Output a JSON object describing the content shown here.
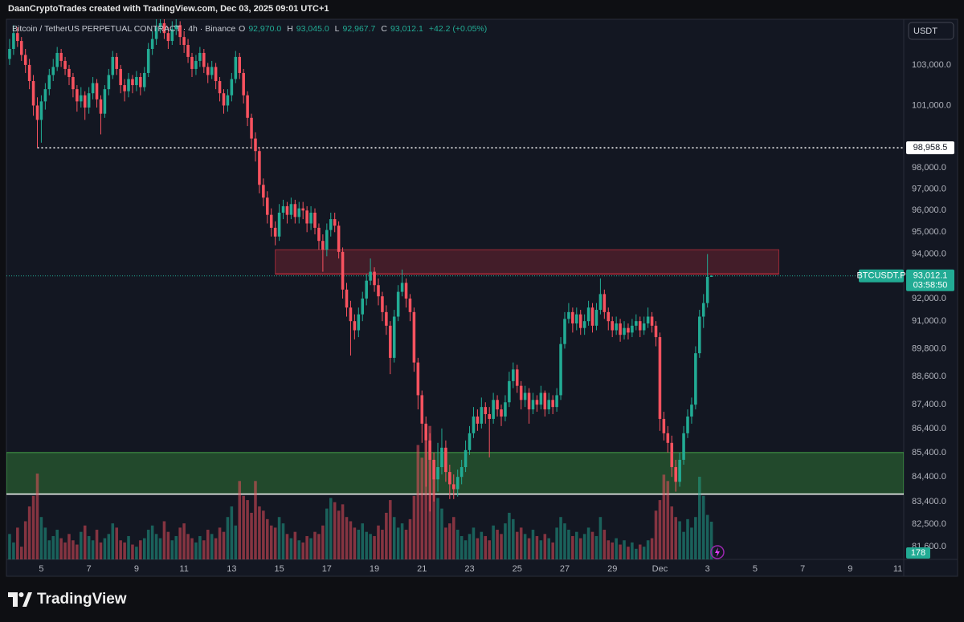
{
  "header": {
    "attribution": "DaanCryptoTrades created with TradingView.com, Dec 03, 2025 09:01 UTC+1"
  },
  "footer": {
    "brand": "TradingView"
  },
  "chart_data": {
    "type": "candlestick",
    "title": "Bitcoin / TetherUS PERPETUAL CONTRACT · 4h · Binance",
    "legend_keys": [
      "O",
      "H",
      "L",
      "C"
    ],
    "legend_values": [
      "92,970.0",
      "93,045.0",
      "92,967.7",
      "93,012.1"
    ],
    "change": "+42.2 (+0.05%)",
    "currency": "USDT",
    "symbol": "BTCUSDT.P",
    "last_price_label": "93,012.1",
    "countdown": "03:58:50",
    "up_color": "#22ab94",
    "down_color": "#f7525f",
    "log_scale": true,
    "grid": false,
    "xlim": [
      -0.8,
      225.5
    ],
    "ylim": [
      81100,
      105300
    ],
    "xticks": [
      {
        "value": 8,
        "label": "5"
      },
      {
        "value": 20,
        "label": "7"
      },
      {
        "value": 32,
        "label": "9"
      },
      {
        "value": 44,
        "label": "11"
      },
      {
        "value": 56,
        "label": "13"
      },
      {
        "value": 68,
        "label": "15"
      },
      {
        "value": 80,
        "label": "17"
      },
      {
        "value": 92,
        "label": "19"
      },
      {
        "value": 104,
        "label": "21"
      },
      {
        "value": 116,
        "label": "23"
      },
      {
        "value": 128,
        "label": "25"
      },
      {
        "value": 140,
        "label": "27"
      },
      {
        "value": 152,
        "label": "29"
      },
      {
        "value": 164,
        "label": "Dec"
      },
      {
        "value": 176,
        "label": "3"
      },
      {
        "value": 188,
        "label": "5"
      },
      {
        "value": 200,
        "label": "7"
      },
      {
        "value": 212,
        "label": "9"
      },
      {
        "value": 224,
        "label": "11"
      }
    ],
    "yticks": [
      {
        "value": 103000,
        "label": "103,000.0"
      },
      {
        "value": 101000,
        "label": "101,000.0"
      },
      {
        "value": 98000,
        "label": "98,000.0"
      },
      {
        "value": 97000,
        "label": "97,000.0"
      },
      {
        "value": 96000,
        "label": "96,000.0"
      },
      {
        "value": 95000,
        "label": "95,000.0"
      },
      {
        "value": 94000,
        "label": "94,000.0"
      },
      {
        "value": 92000,
        "label": "92,000.0"
      },
      {
        "value": 91000,
        "label": "91,000.0"
      },
      {
        "value": 89800,
        "label": "89,800.0"
      },
      {
        "value": 88600,
        "label": "88,600.0"
      },
      {
        "value": 87400,
        "label": "87,400.0"
      },
      {
        "value": 86400,
        "label": "86,400.0"
      },
      {
        "value": 85400,
        "label": "85,400.0"
      },
      {
        "value": 84400,
        "label": "84,400.0"
      },
      {
        "value": 83400,
        "label": "83,400.0"
      },
      {
        "value": 82500,
        "label": "82,500.0"
      },
      {
        "value": 81600,
        "label": "81,600.0"
      }
    ],
    "hline": {
      "value": 98958.5,
      "label": "98,958.5",
      "start": 7,
      "color": "#ffffff"
    },
    "zones": [
      {
        "start": 67,
        "end": 194,
        "top": 94200,
        "bottom": 93100,
        "fill": "rgba(242,54,69,0.22)",
        "stroke": "rgba(242,54,69,0.55)",
        "bottom_line": "rgba(242,54,69,0.55)"
      },
      {
        "start": -0.8,
        "end": 225.5,
        "top": 85400,
        "bottom": 83700,
        "fill": "rgba(56,142,60,0.42)",
        "stroke": "#43a047",
        "bottom_line": "#ffffff"
      }
    ],
    "ohlc": [
      [
        103300,
        104300,
        103000,
        103800
      ],
      [
        103800,
        105000,
        103500,
        104600
      ],
      [
        104600,
        104900,
        103900,
        104200
      ],
      [
        104200,
        104400,
        103200,
        103500
      ],
      [
        103500,
        103800,
        102600,
        103000
      ],
      [
        103000,
        103300,
        101800,
        102200
      ],
      [
        102200,
        102500,
        100500,
        101000
      ],
      [
        101000,
        101400,
        98958.5,
        100300
      ],
      [
        100300,
        101500,
        99200,
        101200
      ],
      [
        101200,
        102100,
        100800,
        101800
      ],
      [
        101800,
        102800,
        101500,
        102500
      ],
      [
        102500,
        103300,
        102200,
        102900
      ],
      [
        102900,
        103900,
        102700,
        103600
      ],
      [
        103600,
        103800,
        102900,
        103200
      ],
      [
        103200,
        103400,
        102500,
        102800
      ],
      [
        102800,
        103000,
        102000,
        102400
      ],
      [
        102400,
        102600,
        101400,
        101800
      ],
      [
        101800,
        102000,
        100700,
        101200
      ],
      [
        101200,
        101900,
        100900,
        101500
      ],
      [
        101500,
        101700,
        100300,
        100900
      ],
      [
        100900,
        101900,
        100600,
        101600
      ],
      [
        101600,
        102400,
        101300,
        102100
      ],
      [
        102100,
        102300,
        100900,
        101300
      ],
      [
        101300,
        101500,
        99600,
        100600
      ],
      [
        100600,
        102000,
        100400,
        101800
      ],
      [
        101800,
        102800,
        101500,
        102500
      ],
      [
        102500,
        103700,
        102300,
        103400
      ],
      [
        103400,
        103600,
        102500,
        102800
      ],
      [
        102800,
        103000,
        101600,
        102000
      ],
      [
        102000,
        102300,
        101200,
        101700
      ],
      [
        101700,
        102600,
        101400,
        102300
      ],
      [
        102300,
        102500,
        101600,
        102000
      ],
      [
        102000,
        102700,
        101700,
        102400
      ],
      [
        102400,
        102600,
        101500,
        101900
      ],
      [
        101900,
        102900,
        101700,
        102600
      ],
      [
        102600,
        104100,
        102400,
        103800
      ],
      [
        103800,
        104700,
        103500,
        104300
      ],
      [
        104300,
        105300,
        104000,
        104900
      ],
      [
        104900,
        105300,
        104600,
        105100
      ],
      [
        105100,
        105300,
        104300,
        104600
      ],
      [
        104600,
        104900,
        103800,
        104200
      ],
      [
        104200,
        105200,
        104000,
        104800
      ],
      [
        104800,
        105300,
        104500,
        105000
      ],
      [
        105000,
        105200,
        104000,
        104400
      ],
      [
        104400,
        104700,
        103600,
        104000
      ],
      [
        104000,
        104300,
        103100,
        103400
      ],
      [
        103400,
        103600,
        102400,
        102800
      ],
      [
        102800,
        103500,
        102500,
        103200
      ],
      [
        103200,
        103900,
        102900,
        103600
      ],
      [
        103600,
        103800,
        102600,
        102900
      ],
      [
        102900,
        103100,
        102100,
        102500
      ],
      [
        102500,
        103200,
        102300,
        102900
      ],
      [
        102900,
        103100,
        101800,
        102200
      ],
      [
        102200,
        102400,
        101200,
        101600
      ],
      [
        101600,
        101800,
        100600,
        101000
      ],
      [
        101000,
        101800,
        100700,
        101500
      ],
      [
        101500,
        102600,
        101200,
        102300
      ],
      [
        102300,
        103700,
        102100,
        103400
      ],
      [
        103400,
        103600,
        102300,
        102600
      ],
      [
        102600,
        102800,
        101100,
        101500
      ],
      [
        101500,
        101700,
        100000,
        100400
      ],
      [
        100400,
        100600,
        98900,
        99400
      ],
      [
        99400,
        99700,
        98300,
        98800
      ],
      [
        98800,
        99000,
        96800,
        97200
      ],
      [
        97200,
        97500,
        96200,
        96600
      ],
      [
        96600,
        96900,
        95400,
        95800
      ],
      [
        95800,
        96100,
        94800,
        95200
      ],
      [
        95200,
        95500,
        94400,
        94800
      ],
      [
        94800,
        96300,
        94600,
        95900
      ],
      [
        95900,
        96500,
        95600,
        96200
      ],
      [
        96200,
        96400,
        95400,
        95800
      ],
      [
        95800,
        96600,
        95600,
        96300
      ],
      [
        96300,
        96500,
        95400,
        95700
      ],
      [
        95700,
        96400,
        95400,
        96100
      ],
      [
        96100,
        96400,
        95600,
        96000
      ],
      [
        96000,
        96200,
        95000,
        95400
      ],
      [
        95400,
        96200,
        95100,
        95900
      ],
      [
        95900,
        96100,
        94900,
        95200
      ],
      [
        95200,
        95400,
        94200,
        94600
      ],
      [
        94600,
        94900,
        93200,
        94200
      ],
      [
        94200,
        95400,
        93900,
        95100
      ],
      [
        95100,
        95900,
        94800,
        95600
      ],
      [
        95600,
        95900,
        95000,
        95300
      ],
      [
        95300,
        95500,
        93800,
        94100
      ],
      [
        94100,
        94300,
        92000,
        92400
      ],
      [
        92400,
        92700,
        91200,
        91600
      ],
      [
        91600,
        91900,
        89500,
        91000
      ],
      [
        91000,
        91300,
        90200,
        90600
      ],
      [
        90600,
        91600,
        90300,
        91300
      ],
      [
        91300,
        92300,
        91000,
        92000
      ],
      [
        92000,
        93100,
        91700,
        92800
      ],
      [
        92800,
        93800,
        92600,
        93200
      ],
      [
        93200,
        93400,
        92300,
        92600
      ],
      [
        92600,
        92900,
        91700,
        92100
      ],
      [
        92100,
        92300,
        91000,
        91400
      ],
      [
        91400,
        91700,
        90400,
        90800
      ],
      [
        90800,
        91000,
        88700,
        89400
      ],
      [
        89400,
        91500,
        89200,
        91200
      ],
      [
        91200,
        92600,
        91000,
        92300
      ],
      [
        92300,
        93300,
        92100,
        92700
      ],
      [
        92700,
        92900,
        91600,
        92000
      ],
      [
        92000,
        92200,
        91000,
        91400
      ],
      [
        91400,
        91600,
        88800,
        89200
      ],
      [
        89200,
        89400,
        87200,
        87800
      ],
      [
        87800,
        88000,
        85800,
        86600
      ],
      [
        86600,
        86900,
        84000,
        85900
      ],
      [
        85900,
        86200,
        83000,
        85100
      ],
      [
        85100,
        85400,
        83400,
        84300
      ],
      [
        84300,
        85800,
        83800,
        84800
      ],
      [
        84800,
        86400,
        84500,
        85600
      ],
      [
        85600,
        85900,
        84200,
        84600
      ],
      [
        84600,
        84900,
        83500,
        84100
      ],
      [
        84100,
        84500,
        83500,
        83900
      ],
      [
        83900,
        84700,
        83600,
        84400
      ],
      [
        84400,
        85100,
        84100,
        84800
      ],
      [
        84800,
        85900,
        84600,
        85500
      ],
      [
        85500,
        86500,
        85300,
        86200
      ],
      [
        86200,
        87300,
        86000,
        86900
      ],
      [
        86900,
        87200,
        86300,
        86600
      ],
      [
        86600,
        87700,
        86400,
        87300
      ],
      [
        87300,
        87500,
        86600,
        87000
      ],
      [
        87000,
        87300,
        85200,
        86800
      ],
      [
        86800,
        87900,
        86600,
        87600
      ],
      [
        87600,
        87800,
        86900,
        87200
      ],
      [
        87200,
        87400,
        86500,
        86900
      ],
      [
        86900,
        87800,
        86700,
        87500
      ],
      [
        87500,
        88800,
        87300,
        88400
      ],
      [
        88400,
        89200,
        88100,
        88900
      ],
      [
        88900,
        89100,
        87900,
        88200
      ],
      [
        88200,
        88400,
        87200,
        87600
      ],
      [
        87600,
        88200,
        87300,
        87900
      ],
      [
        87900,
        88100,
        86600,
        87200
      ],
      [
        87200,
        87900,
        87000,
        87600
      ],
      [
        87600,
        87800,
        87100,
        87400
      ],
      [
        87400,
        88200,
        87200,
        87900
      ],
      [
        87900,
        88000,
        86900,
        87200
      ],
      [
        87200,
        87900,
        87000,
        87600
      ],
      [
        87600,
        87800,
        87000,
        87300
      ],
      [
        87300,
        88100,
        87100,
        87800
      ],
      [
        87800,
        90300,
        87600,
        90000
      ],
      [
        90000,
        91400,
        89800,
        91100
      ],
      [
        91100,
        91800,
        90900,
        91400
      ],
      [
        91400,
        91600,
        90500,
        90900
      ],
      [
        90900,
        91600,
        90600,
        91300
      ],
      [
        91300,
        91500,
        90400,
        90700
      ],
      [
        90700,
        91300,
        90400,
        91000
      ],
      [
        91000,
        91900,
        90800,
        91600
      ],
      [
        91600,
        91800,
        90500,
        90800
      ],
      [
        90800,
        91800,
        90600,
        91500
      ],
      [
        91500,
        92900,
        91300,
        92200
      ],
      [
        92200,
        92400,
        91100,
        91400
      ],
      [
        91400,
        91600,
        90600,
        91000
      ],
      [
        91000,
        91200,
        90300,
        90600
      ],
      [
        90600,
        91200,
        90400,
        90900
      ],
      [
        90900,
        91100,
        90100,
        90400
      ],
      [
        90400,
        91000,
        90200,
        90700
      ],
      [
        90700,
        90900,
        90200,
        90500
      ],
      [
        90500,
        91100,
        90300,
        90800
      ],
      [
        90800,
        91300,
        90600,
        91000
      ],
      [
        91000,
        91200,
        90300,
        90600
      ],
      [
        90600,
        91200,
        90400,
        90900
      ],
      [
        90900,
        91600,
        90700,
        91200
      ],
      [
        91200,
        91400,
        90500,
        90800
      ],
      [
        90800,
        91000,
        89900,
        90300
      ],
      [
        90300,
        90500,
        86300,
        86800
      ],
      [
        86800,
        87100,
        85900,
        86200
      ],
      [
        86200,
        86500,
        85400,
        85800
      ],
      [
        85800,
        86100,
        84400,
        84800
      ],
      [
        84800,
        85100,
        83800,
        84200
      ],
      [
        84200,
        85400,
        84000,
        85100
      ],
      [
        85100,
        86500,
        84900,
        86200
      ],
      [
        86200,
        87200,
        86000,
        86900
      ],
      [
        86900,
        87700,
        86600,
        87400
      ],
      [
        87400,
        89900,
        87200,
        89600
      ],
      [
        89600,
        91500,
        89400,
        91200
      ],
      [
        91200,
        92200,
        90700,
        91800
      ],
      [
        91800,
        94000,
        91600,
        92970
      ],
      [
        92970,
        93045,
        92967.7,
        93012.1
      ]
    ],
    "volume": [
      120,
      80,
      150,
      60,
      180,
      250,
      300,
      405,
      200,
      150,
      90,
      110,
      140,
      100,
      80,
      120,
      90,
      70,
      130,
      160,
      110,
      90,
      140,
      80,
      100,
      120,
      170,
      150,
      90,
      80,
      110,
      70,
      60,
      90,
      100,
      140,
      160,
      120,
      100,
      180,
      130,
      90,
      110,
      150,
      170,
      120,
      100,
      80,
      110,
      90,
      140,
      120,
      100,
      150,
      130,
      200,
      250,
      160,
      370,
      300,
      280,
      220,
      370,
      250,
      230,
      190,
      160,
      150,
      200,
      170,
      120,
      100,
      130,
      90,
      80,
      110,
      100,
      130,
      120,
      160,
      240,
      290,
      270,
      230,
      260,
      200,
      180,
      150,
      140,
      170,
      130,
      120,
      110,
      160,
      140,
      220,
      280,
      200,
      150,
      170,
      140,
      190,
      300,
      540,
      480,
      560,
      630,
      380,
      290,
      240,
      150,
      170,
      200,
      140,
      110,
      90,
      120,
      150,
      100,
      130,
      110,
      90,
      160,
      140,
      120,
      170,
      220,
      190,
      130,
      150,
      120,
      100,
      140,
      110,
      90,
      120,
      100,
      80,
      150,
      200,
      170,
      140,
      110,
      130,
      100,
      120,
      150,
      130,
      110,
      200,
      140,
      90,
      80,
      100,
      70,
      90,
      60,
      80,
      50,
      70,
      60,
      90,
      100,
      230,
      280,
      400,
      370,
      250,
      200,
      180,
      130,
      190,
      150,
      200,
      390,
      300,
      210,
      178
    ]
  }
}
